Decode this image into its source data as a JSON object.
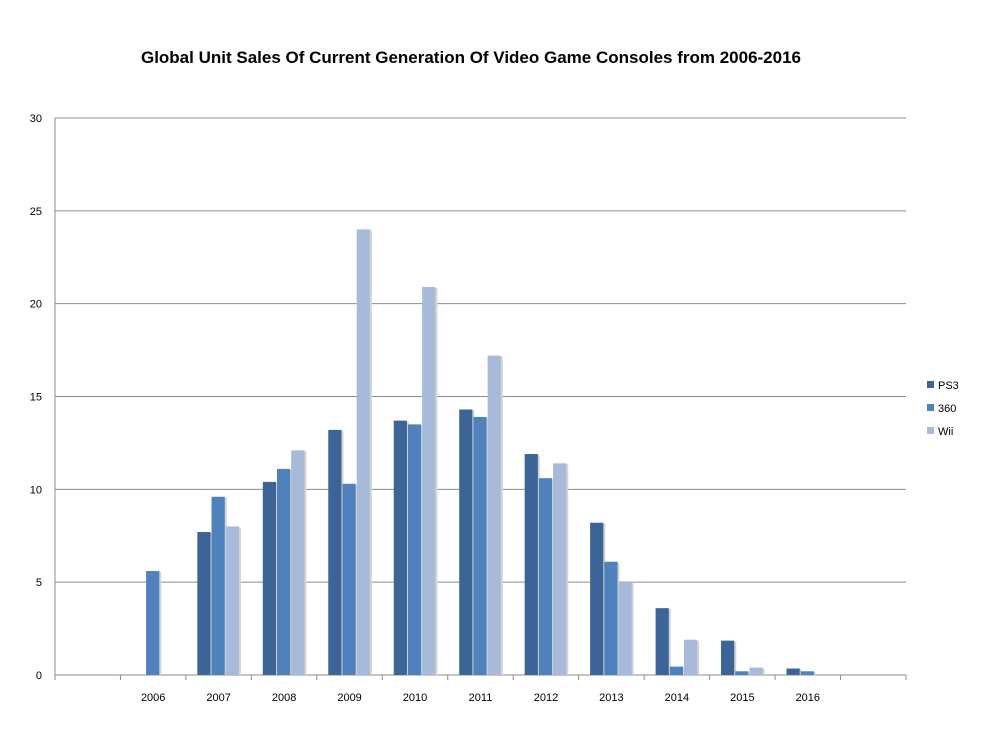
{
  "chart_data": {
    "type": "bar",
    "title": "Global Unit Sales Of Current Generation Of Video Game Consoles from 2006-2016",
    "xlabel": "",
    "ylabel": "",
    "categories": [
      "",
      "2006",
      "2007",
      "2008",
      "2009",
      "2010",
      "2011",
      "2012",
      "2013",
      "2014",
      "2015",
      "2016",
      ""
    ],
    "ylim": [
      0,
      30
    ],
    "yticks": [
      "0",
      "5",
      "10",
      "15",
      "20",
      "25",
      "30"
    ],
    "grid": true,
    "legend_position": "right",
    "series": [
      {
        "name": "PS3",
        "color": "#3c6496",
        "values": [
          null,
          null,
          7.7,
          10.4,
          13.2,
          13.7,
          14.3,
          11.9,
          8.2,
          3.6,
          1.85,
          0.35,
          null
        ]
      },
      {
        "name": "360",
        "color": "#4f81bd",
        "values": [
          null,
          5.6,
          9.6,
          11.1,
          10.3,
          13.5,
          13.9,
          10.6,
          6.1,
          0.45,
          0.2,
          0.2,
          null
        ]
      },
      {
        "name": "Wii",
        "color": "#a8bad9",
        "values": [
          null,
          null,
          8.0,
          12.1,
          24.0,
          20.9,
          17.2,
          11.4,
          5.0,
          1.9,
          0.4,
          null,
          null
        ]
      }
    ]
  }
}
